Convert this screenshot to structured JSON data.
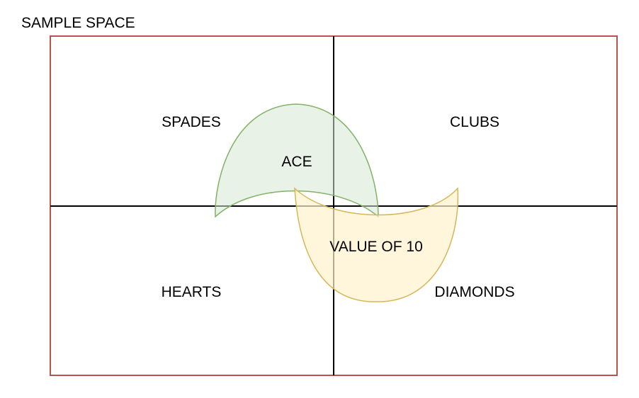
{
  "diagram": {
    "title": "SAMPLE SPACE",
    "quadrants": {
      "top_left": "SPADES",
      "top_right": "CLUBS",
      "bottom_left": "HEARTS",
      "bottom_right": "DIAMONDS"
    },
    "events": {
      "ace": "ACE",
      "value_of_10": "VALUE OF 10"
    },
    "colors": {
      "frame_border": "#b85450",
      "divider_lines": "#000000",
      "ace_fill": "#d5e8d4",
      "ace_stroke": "#82b366",
      "value_of_10_fill": "#fff2cc",
      "value_of_10_stroke": "#d6b656"
    }
  }
}
